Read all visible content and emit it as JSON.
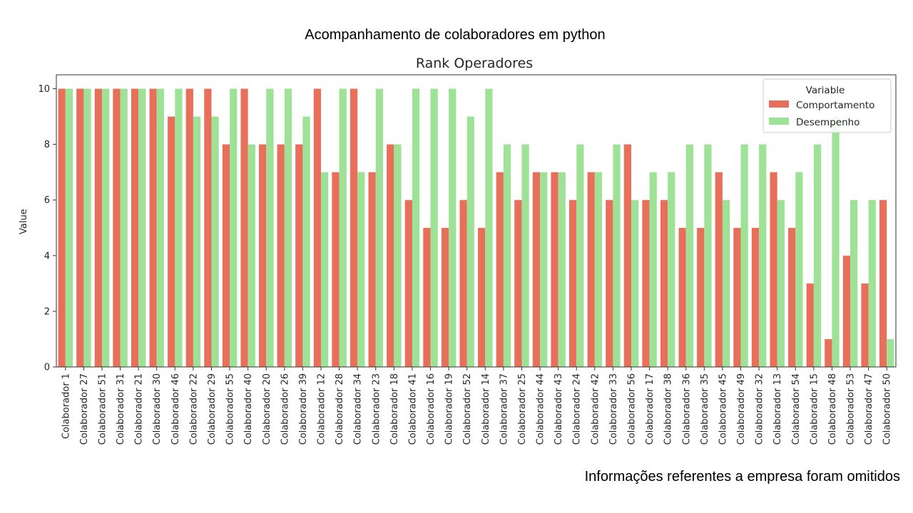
{
  "slide": {
    "heading": "Acompanhamento de colaboradores em python",
    "footnote": "Informações referentes a empresa foram omitidos"
  },
  "chart_data": {
    "type": "bar",
    "title": "Rank Operadores",
    "xlabel": "",
    "ylabel": "Value",
    "ylim": [
      0,
      10.5
    ],
    "yticks": [
      0,
      2,
      4,
      6,
      8,
      10
    ],
    "grid": false,
    "legend": {
      "title": "Variable",
      "placement": "top-right"
    },
    "categories": [
      "Colaborador 1",
      "Colaborador 27",
      "Colaborador 51",
      "Colaborador 31",
      "Colaborador 21",
      "Colaborador 30",
      "Colaborador 46",
      "Colaborador 22",
      "Colaborador 29",
      "Colaborador 55",
      "Colaborador 40",
      "Colaborador 20",
      "Colaborador 26",
      "Colaborador 39",
      "Colaborador 12",
      "Colaborador 28",
      "Colaborador 34",
      "Colaborador 23",
      "Colaborador 18",
      "Colaborador 41",
      "Colaborador 16",
      "Colaborador 19",
      "Colaborador 52",
      "Colaborador 14",
      "Colaborador 37",
      "Colaborador 25",
      "Colaborador 44",
      "Colaborador 43",
      "Colaborador 24",
      "Colaborador 42",
      "Colaborador 33",
      "Colaborador 56",
      "Colaborador 17",
      "Colaborador 38",
      "Colaborador 36",
      "Colaborador 35",
      "Colaborador 45",
      "Colaborador 49",
      "Colaborador 32",
      "Colaborador 13",
      "Colaborador 54",
      "Colaborador 15",
      "Colaborador 48",
      "Colaborador 53",
      "Colaborador 47",
      "Colaborador 50"
    ],
    "series": [
      {
        "name": "Comportamento",
        "color": "#e8705a",
        "values": [
          10,
          10,
          10,
          10,
          10,
          10,
          9,
          10,
          10,
          8,
          10,
          8,
          8,
          8,
          10,
          7,
          10,
          7,
          8,
          6,
          5,
          5,
          6,
          5,
          7,
          6,
          7,
          7,
          6,
          7,
          6,
          8,
          6,
          6,
          5,
          5,
          7,
          5,
          5,
          7,
          5,
          3,
          1,
          4,
          3,
          6
        ]
      },
      {
        "name": "Desempenho",
        "color": "#9ee297",
        "values": [
          10,
          10,
          10,
          10,
          10,
          10,
          10,
          9,
          9,
          10,
          8,
          10,
          10,
          9,
          7,
          10,
          7,
          10,
          8,
          10,
          10,
          10,
          9,
          10,
          8,
          8,
          7,
          7,
          8,
          7,
          8,
          6,
          7,
          7,
          8,
          8,
          6,
          8,
          8,
          6,
          7,
          8,
          9,
          6,
          6,
          1
        ]
      }
    ]
  }
}
